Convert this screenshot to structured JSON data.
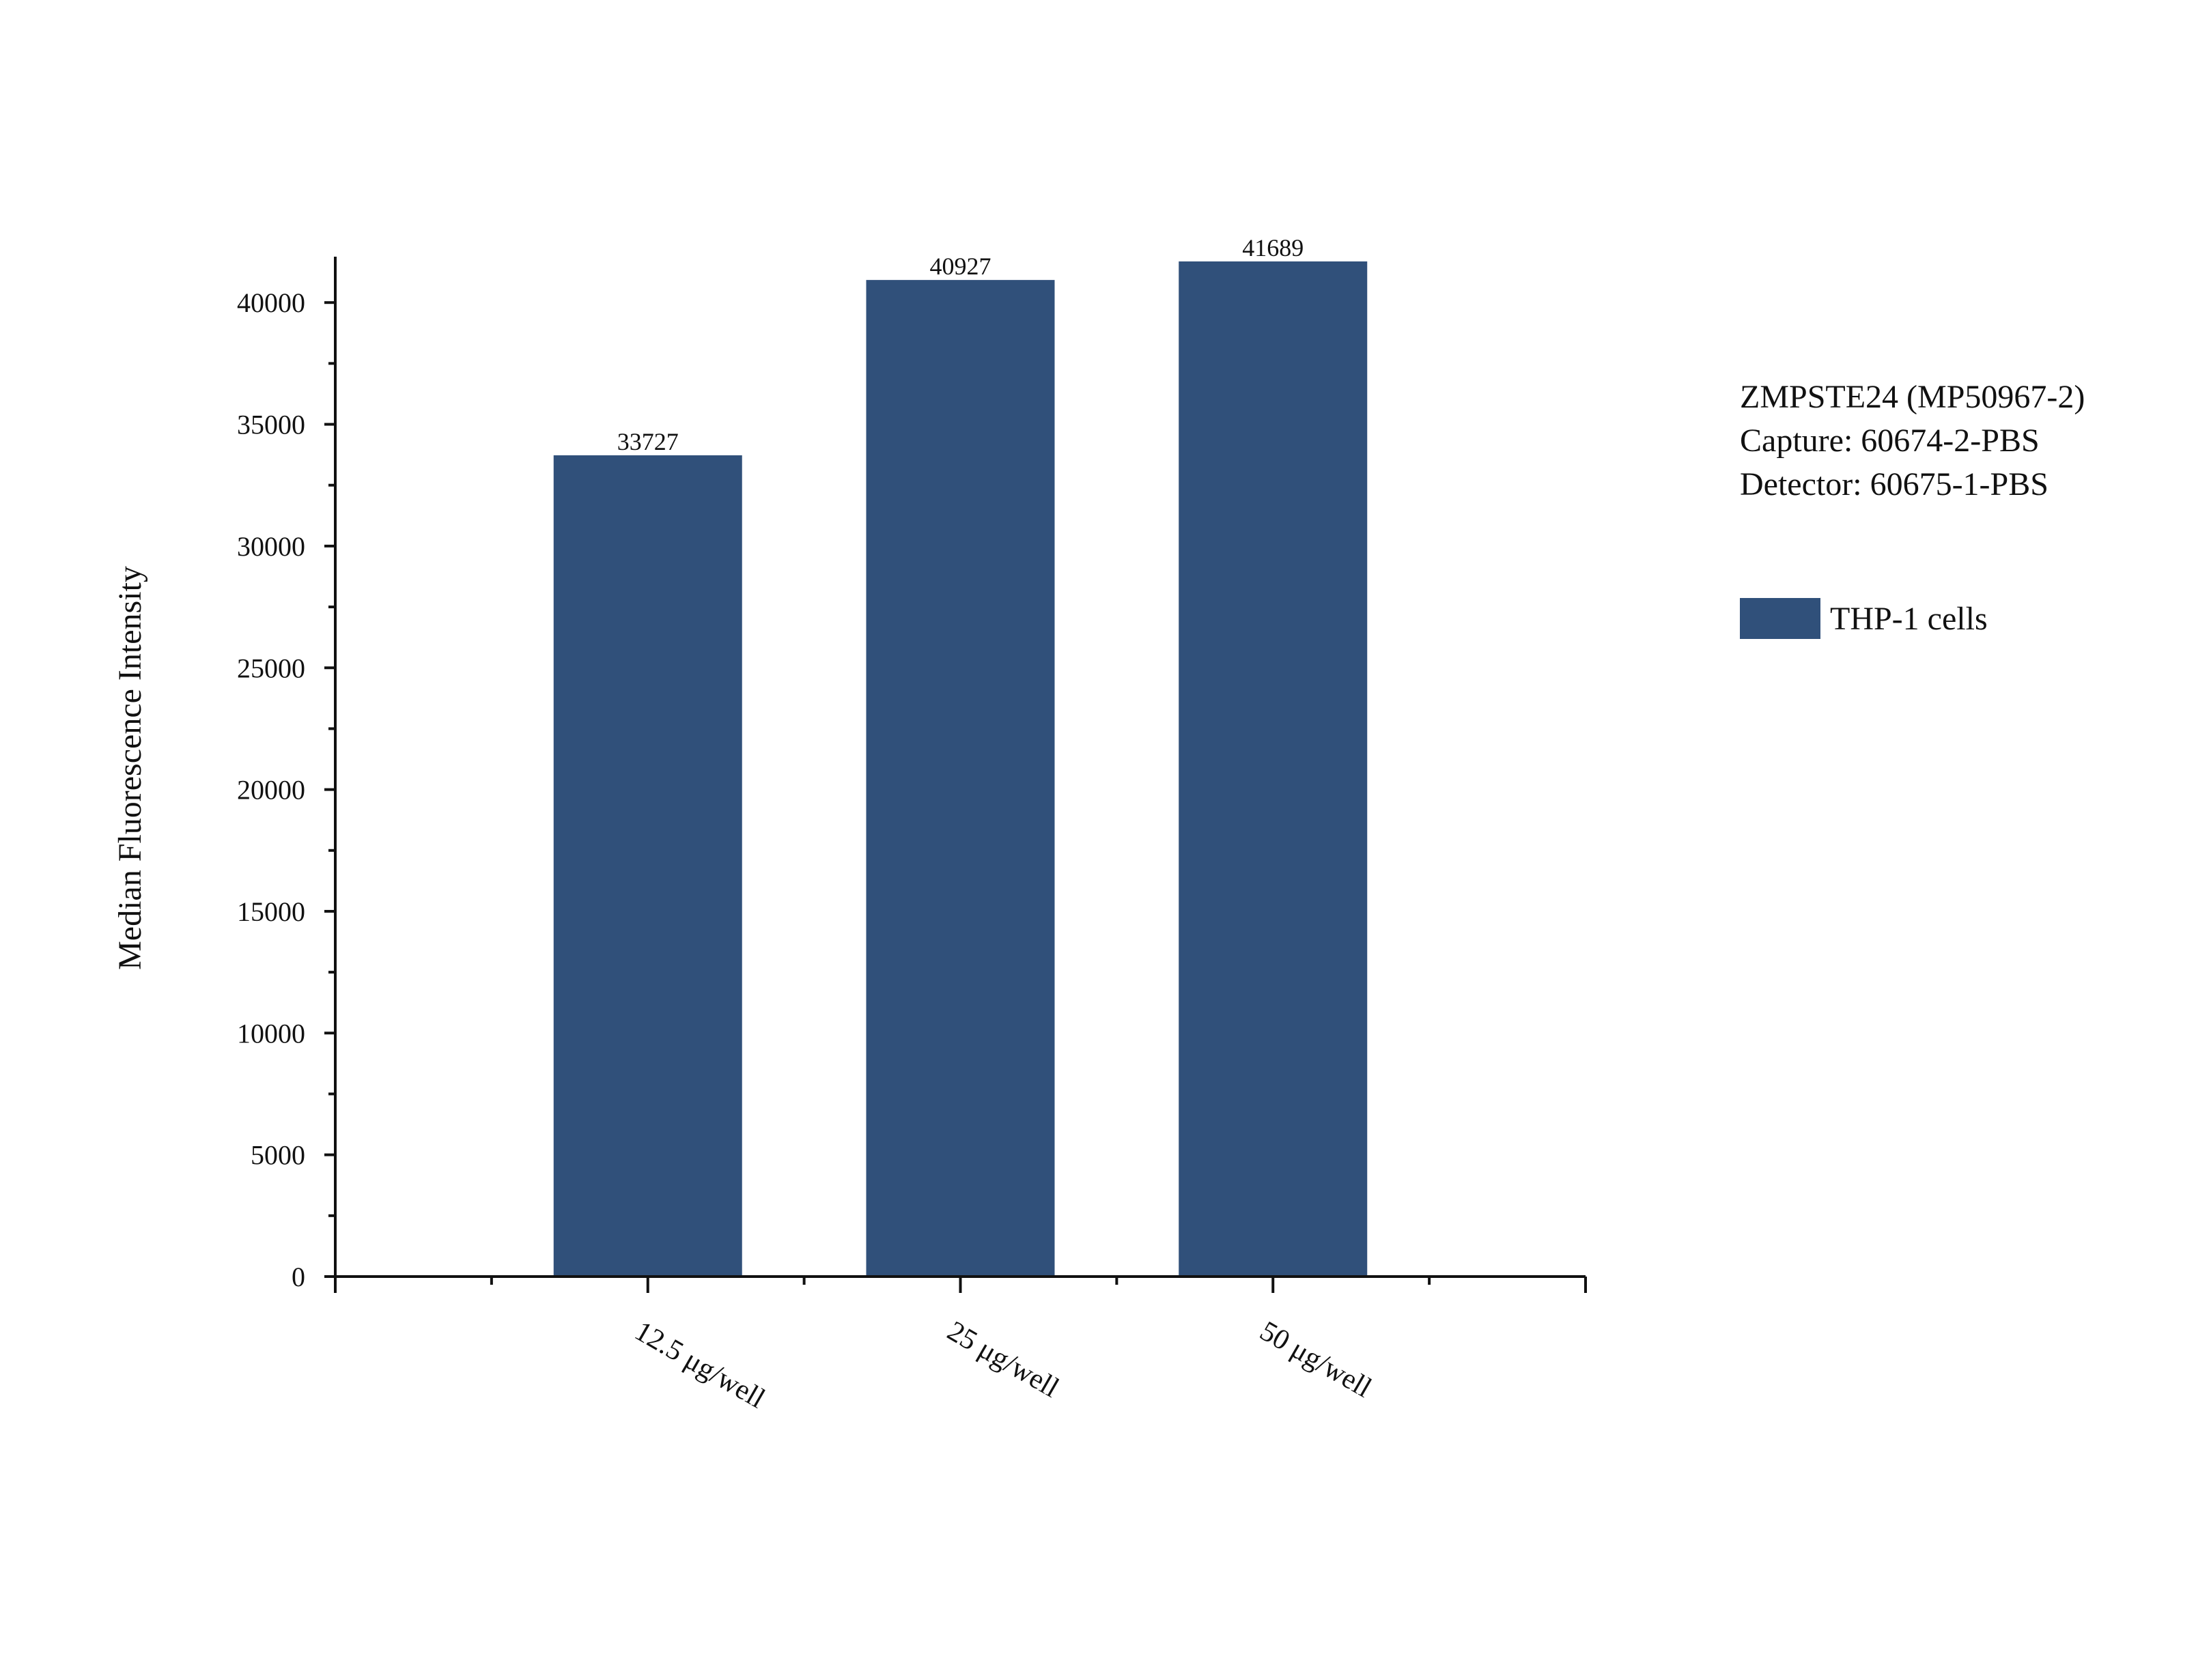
{
  "chart_data": {
    "type": "bar",
    "categories": [
      "12.5 μg/well",
      "25 μg/well",
      "50 μg/well"
    ],
    "series": [
      {
        "name": "THP-1 cells",
        "values": [
          33727,
          40927,
          41689
        ],
        "color": "#30507a"
      }
    ],
    "data_labels": [
      "33727",
      "40927",
      "41689"
    ],
    "ylabel": "Median Fluorescence Intensity",
    "xlabel": "",
    "ylim": [
      0,
      42000
    ],
    "yticks": [
      0,
      5000,
      10000,
      15000,
      20000,
      25000,
      30000,
      35000,
      40000
    ],
    "ytick_labels": [
      "0",
      "5000",
      "10000",
      "15000",
      "20000",
      "25000",
      "30000",
      "35000",
      "40000"
    ],
    "grid": false,
    "legend_position": "right"
  },
  "annotation": {
    "lines": [
      "ZMPSTE24 (MP50967-2)",
      "Capture: 60674-2-PBS",
      "Detector: 60675-1-PBS"
    ]
  },
  "legend": {
    "label": "THP-1 cells",
    "color": "#30507a"
  }
}
